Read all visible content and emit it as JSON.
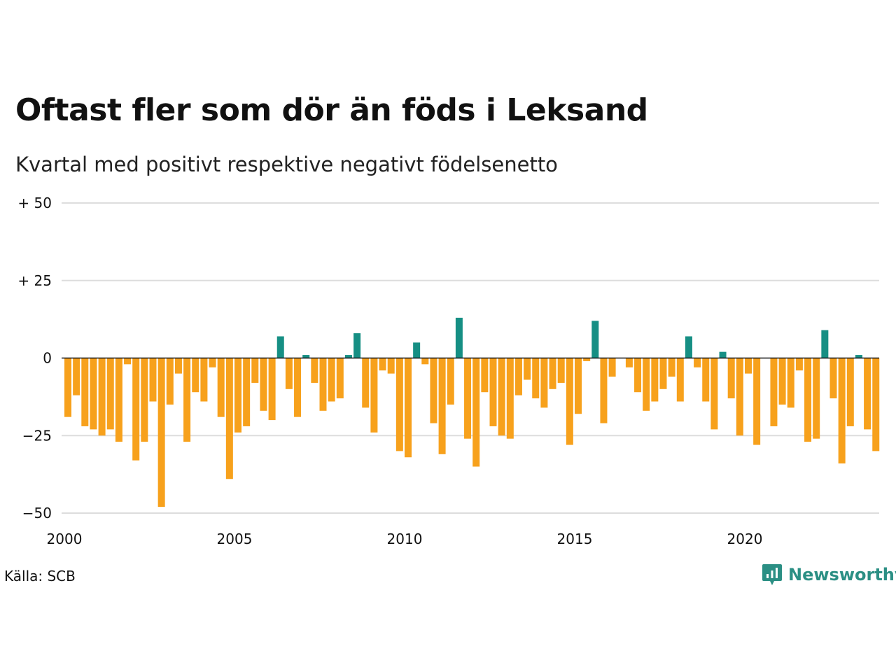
{
  "title": "Oftast fler som dör än föds i Leksand",
  "subtitle": "Kvartal med positivt respektive negativt födelsenetto",
  "source": "Källa: SCB",
  "brand": {
    "name": "Newsworthy",
    "icon": "newsworthy-logo-icon"
  },
  "colors": {
    "positive": "#168f84",
    "negative": "#f7a11c",
    "grid": "#dddddd",
    "zero": "#111111"
  },
  "chart_data": {
    "type": "bar",
    "x_start": 2000,
    "x_step": 0.25,
    "ylim": [
      -50,
      50
    ],
    "y_ticks": [
      {
        "value": 50,
        "label": "+ 50"
      },
      {
        "value": 25,
        "label": "+ 25"
      },
      {
        "value": 0,
        "label": "0"
      },
      {
        "value": -25,
        "label": "−25"
      },
      {
        "value": -50,
        "label": "−50"
      }
    ],
    "x_ticks": [
      {
        "value": 2000,
        "label": "2000"
      },
      {
        "value": 2005,
        "label": "2005"
      },
      {
        "value": 2010,
        "label": "2010"
      },
      {
        "value": 2015,
        "label": "2015"
      },
      {
        "value": 2020,
        "label": "2020"
      }
    ],
    "grid": true,
    "values": [
      -19,
      -12,
      -22,
      -23,
      -25,
      -23,
      -27,
      -2,
      -33,
      -27,
      -14,
      -48,
      -15,
      -5,
      -27,
      -11,
      -14,
      -3,
      -19,
      -39,
      -24,
      -22,
      -8,
      -17,
      -20,
      7,
      -10,
      -19,
      1,
      -8,
      -17,
      -14,
      -13,
      1,
      8,
      -16,
      -24,
      -4,
      -5,
      -30,
      -32,
      5,
      -2,
      -21,
      -31,
      -15,
      13,
      -26,
      -35,
      -11,
      -22,
      -25,
      -26,
      -12,
      -7,
      -13,
      -16,
      -10,
      -8,
      -28,
      -18,
      -1,
      12,
      -21,
      -6,
      0,
      -3,
      -11,
      -17,
      -14,
      -10,
      -6,
      -14,
      7,
      -3,
      -14,
      -23,
      2,
      -13,
      -25,
      -5,
      -28,
      0,
      -22,
      -15,
      -16,
      -4,
      -27,
      -26,
      9,
      -13,
      -34,
      -22,
      1,
      -23,
      -30
    ]
  }
}
